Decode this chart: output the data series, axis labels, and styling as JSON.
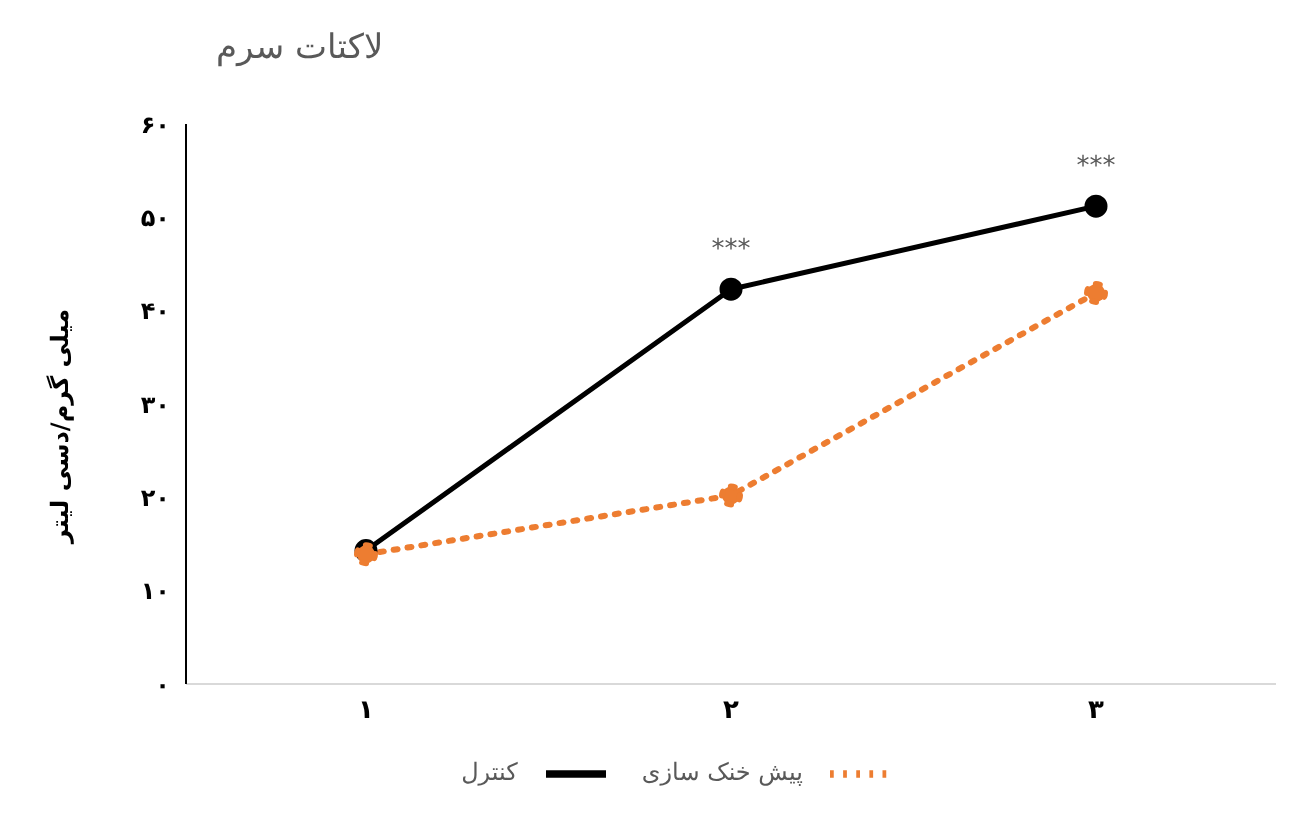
{
  "chart_data": {
    "type": "line",
    "title": "لاکتات سرم",
    "ylabel": "میلی گرم/دسی لیتر",
    "categories": [
      "۱",
      "۲",
      "۳"
    ],
    "series": [
      {
        "name": "کنترل",
        "color": "#000000",
        "values": [
          14.3,
          42.3,
          51.2
        ],
        "line_style": "solid"
      },
      {
        "name": "پیش خنک سازی",
        "color": "#ed7d31",
        "values": [
          13.9,
          20.2,
          41.9
        ],
        "line_style": "dotted"
      }
    ],
    "ylim": [
      0,
      60
    ],
    "yticks": [
      {
        "value": 0,
        "label": "۰"
      },
      {
        "value": 10,
        "label": "۱۰"
      },
      {
        "value": 20,
        "label": "۲۰"
      },
      {
        "value": 30,
        "label": "۳۰"
      },
      {
        "value": 40,
        "label": "۴۰"
      },
      {
        "value": 50,
        "label": "۵۰"
      },
      {
        "value": 60,
        "label": "۶۰"
      }
    ],
    "annotations": [
      {
        "text": "***",
        "x": "۲",
        "y": 42.3
      },
      {
        "text": "***",
        "x": "۳",
        "y": 51.2
      }
    ],
    "marker": "circle",
    "grid": false,
    "legend": "bottom"
  }
}
